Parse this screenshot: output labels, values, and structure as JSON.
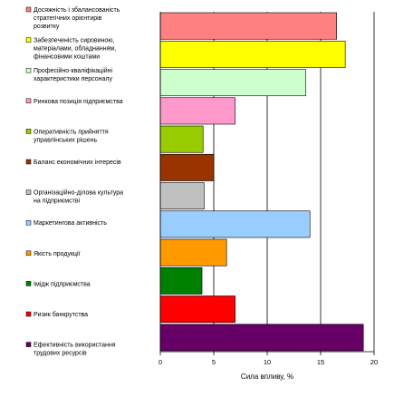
{
  "chart_data": {
    "type": "bar",
    "orientation": "horizontal",
    "categories": [
      "Досяжність і збалансованість стратегічних орієнтирів розвитку",
      "Забезпеченість сировиною, матеріалами, обладнанням, фінансовими коштами",
      "Професійно-кваліфікаційні характеристики персоналу",
      "Ринкова позиція підприємства",
      "Оперативність прийняття управлінських рішень",
      "Баланс економічних інтересів",
      "Організаційно-ділова культура на підприємстві",
      "Маркетингова активність",
      "Якість продукції",
      "Імідж підприємства",
      "Ризик банкрутства",
      "Ефективність використання трудових ресурсів"
    ],
    "label_lines": [
      [
        "Досяжність і збалансованість",
        "стратегічних орієнтирів",
        "розвитку"
      ],
      [
        "Забезпеченість сировиною,",
        "матеріалами, обладнанням,",
        "фінансовими коштами"
      ],
      [
        "Професійно-кваліфікаційні",
        "характеристики персоналу"
      ],
      [
        "Ринкова позиція підприємства"
      ],
      [
        "Оперативність прийняття",
        "управлінських рішень"
      ],
      [
        "Баланс економічних інтересів"
      ],
      [
        "Організаційно-ділова культура",
        "на підприємстві"
      ],
      [
        "Маркетингова активність"
      ],
      [
        "Якість продукції"
      ],
      [
        "Імідж підприємства"
      ],
      [
        "Ризик банкрутства"
      ],
      [
        "Ефективність використання",
        "трудових ресурсів"
      ]
    ],
    "values": [
      16.5,
      17.3,
      13.6,
      7.0,
      4.0,
      5.0,
      4.1,
      14.0,
      6.2,
      3.9,
      7.0,
      19.0
    ],
    "colors": [
      "#ff8080",
      "#ffff00",
      "#ccffcc",
      "#ff99cc",
      "#99cc00",
      "#993300",
      "#c0c0c0",
      "#99ccff",
      "#ff9900",
      "#008000",
      "#ff0000",
      "#660066"
    ],
    "title": "",
    "xlabel": "Сила впливу, %",
    "ylabel": "",
    "xlim": [
      0,
      20
    ],
    "xticks": [
      0,
      5,
      10,
      15,
      20
    ],
    "grid": true,
    "legend": "left"
  }
}
